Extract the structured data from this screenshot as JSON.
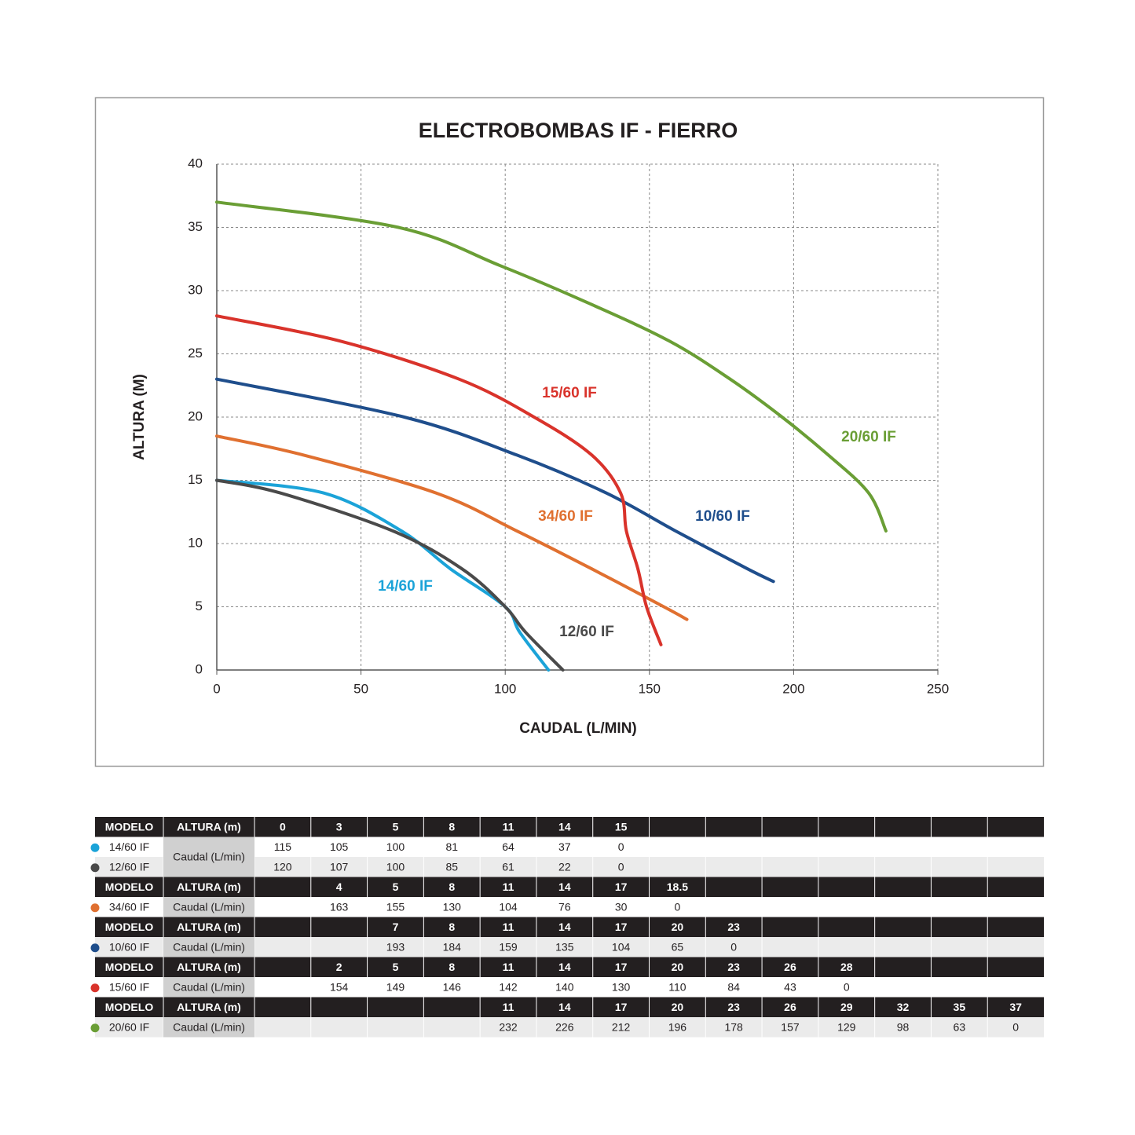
{
  "chart_data": {
    "type": "line",
    "title": "ELECTROBOMBAS IF - FIERRO",
    "x_label": "CAUDAL (L/MIN)",
    "y_label": "ALTURA (M)",
    "xlim": [
      0,
      250
    ],
    "xticks": [
      0,
      50,
      100,
      150,
      200,
      250
    ],
    "ylim": [
      0,
      40
    ],
    "yticks": [
      0,
      5,
      10,
      15,
      20,
      25,
      30,
      35,
      40
    ],
    "grid": true,
    "series": [
      {
        "name": "14/60 IF",
        "color": "#1ba3d8",
        "x": [
          0,
          37,
          64,
          81,
          100,
          105,
          115
        ],
        "values": [
          15,
          14,
          11,
          8,
          5,
          3,
          0
        ]
      },
      {
        "name": "12/60 IF",
        "color": "#4a4a4a",
        "x": [
          0,
          22,
          61,
          85,
          100,
          107,
          120
        ],
        "values": [
          15,
          14,
          11,
          8,
          5,
          3,
          0
        ]
      },
      {
        "name": "34/60 IF",
        "color": "#e07030",
        "x": [
          0,
          30,
          76,
          104,
          130,
          155,
          163
        ],
        "values": [
          18.5,
          17,
          14,
          11,
          8,
          5,
          4
        ]
      },
      {
        "name": "10/60 IF",
        "color": "#1f4e8c",
        "x": [
          0,
          65,
          104,
          135,
          159,
          184,
          193
        ],
        "values": [
          23,
          20,
          17,
          14,
          11,
          8,
          7
        ]
      },
      {
        "name": "15/60 IF",
        "color": "#d9332b",
        "x": [
          0,
          43,
          84,
          110,
          130,
          140,
          142,
          146,
          149,
          154
        ],
        "values": [
          28,
          26,
          23,
          20,
          17,
          14,
          11,
          8,
          5,
          2
        ]
      },
      {
        "name": "20/60 IF",
        "color": "#6a9e35",
        "x": [
          0,
          63,
          98,
          129,
          157,
          178,
          196,
          212,
          226,
          232
        ],
        "values": [
          37,
          35,
          32,
          29,
          26,
          23,
          20,
          17,
          14,
          11
        ]
      }
    ]
  },
  "table": {
    "headers": {
      "modelo": "MODELO",
      "altura": "ALTURA (m)",
      "caudal": "Caudal (L/min)"
    },
    "groups": [
      {
        "alturas": [
          0,
          3,
          5,
          8,
          11,
          14,
          15
        ],
        "rows": [
          {
            "modelo": "14/60 IF",
            "color": "#1ba3d8",
            "caudal": [
              115,
              105,
              100,
              81,
              64,
              37,
              0
            ]
          },
          {
            "modelo": "12/60 IF",
            "color": "#4a4a4a",
            "caudal": [
              120,
              107,
              100,
              85,
              61,
              22,
              0
            ]
          }
        ]
      },
      {
        "alturas": [
          4,
          5,
          8,
          11,
          14,
          17,
          18.5
        ],
        "rows": [
          {
            "modelo": "34/60 IF",
            "color": "#e07030",
            "caudal": [
              163,
              155,
              130,
              104,
              76,
              30,
              0
            ]
          }
        ]
      },
      {
        "alturas": [
          7,
          8,
          11,
          14,
          17,
          20,
          23
        ],
        "rows": [
          {
            "modelo": "10/60 IF",
            "color": "#1f4e8c",
            "caudal": [
              193,
              184,
              159,
              135,
              104,
              65,
              0
            ]
          }
        ]
      },
      {
        "alturas": [
          2,
          5,
          8,
          11,
          14,
          17,
          20,
          23,
          26,
          28
        ],
        "rows": [
          {
            "modelo": "15/60 IF",
            "color": "#d9332b",
            "caudal": [
              154,
              149,
              146,
              142,
              140,
              130,
              110,
              84,
              43,
              0
            ]
          }
        ]
      },
      {
        "alturas": [
          11,
          14,
          17,
          20,
          23,
          26,
          29,
          32,
          35,
          37
        ],
        "rows": [
          {
            "modelo": "20/60 IF",
            "color": "#6a9e35",
            "caudal": [
              232,
              226,
              212,
              196,
              178,
              157,
              129,
              98,
              63,
              0
            ]
          }
        ]
      }
    ]
  }
}
